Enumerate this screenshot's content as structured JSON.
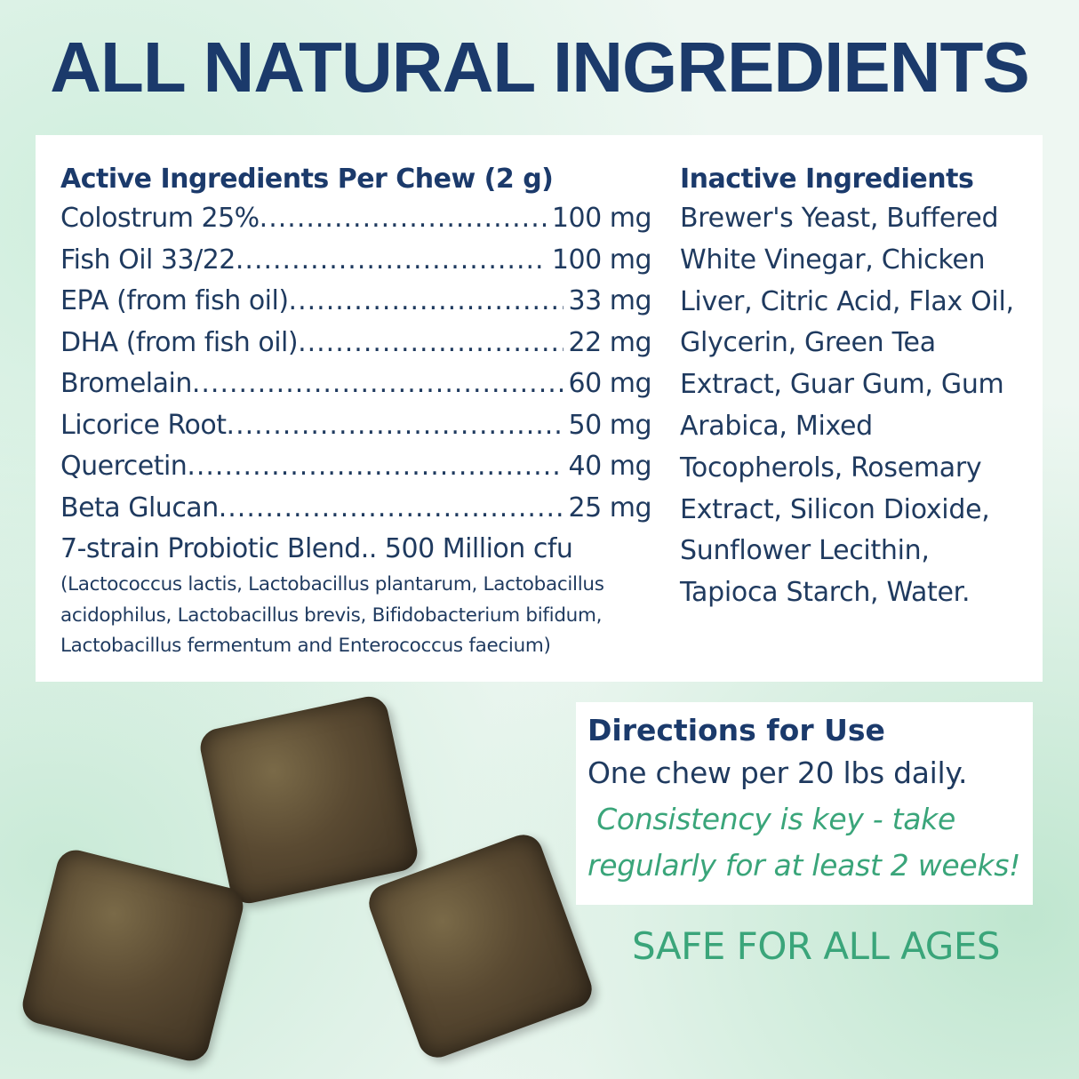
{
  "title": "ALL NATURAL INGREDIENTS",
  "active": {
    "heading": "Active Ingredients Per Chew (2 g)",
    "items": [
      {
        "name": "Colostrum 25%",
        "amount": "100 mg"
      },
      {
        "name": "Fish Oil 33/22",
        "amount": "100 mg"
      },
      {
        "name": "EPA (from fish oil)",
        "amount": "33 mg"
      },
      {
        "name": "DHA (from fish oil)",
        "amount": "22 mg"
      },
      {
        "name": "Bromelain",
        "amount": "60 mg"
      },
      {
        "name": "Licorice Root",
        "amount": "50 mg"
      },
      {
        "name": "Quercetin",
        "amount": "40 mg"
      },
      {
        "name": "Beta Glucan",
        "amount": "25 mg"
      }
    ],
    "blend": "7-strain Probiotic Blend.. 500 Million cfu",
    "strains_lines": [
      "(Lactococcus lactis, Lactobacillus plantarum, Lactobacillus",
      "acidophilus, Lactobacillus brevis, Bifidobacterium bifidum,",
      "Lactobacillus fermentum and Enterococcus faecium)"
    ]
  },
  "inactive": {
    "heading": "Inactive Ingredients",
    "lines": [
      "Brewer's Yeast, Buffered",
      "White Vinegar, Chicken",
      "Liver, Citric Acid, Flax Oil,",
      "Glycerin, Green Tea",
      "Extract, Guar Gum, Gum",
      "Arabica, Mixed",
      "Tocopherols, Rosemary",
      "Extract, Silicon Dioxide,",
      "Sunflower Lecithin,",
      "Tapioca Starch, Water."
    ]
  },
  "directions": {
    "heading": "Directions for Use",
    "text": "One chew per 20 lbs daily.",
    "note_lines": [
      " Consistency is key - take",
      "regularly for at least 2 weeks!"
    ]
  },
  "safe": "SAFE FOR ALL AGES",
  "colors": {
    "title": "#1b3a6b",
    "text": "#1f3a5f",
    "accent_green": "#3aa57a"
  }
}
